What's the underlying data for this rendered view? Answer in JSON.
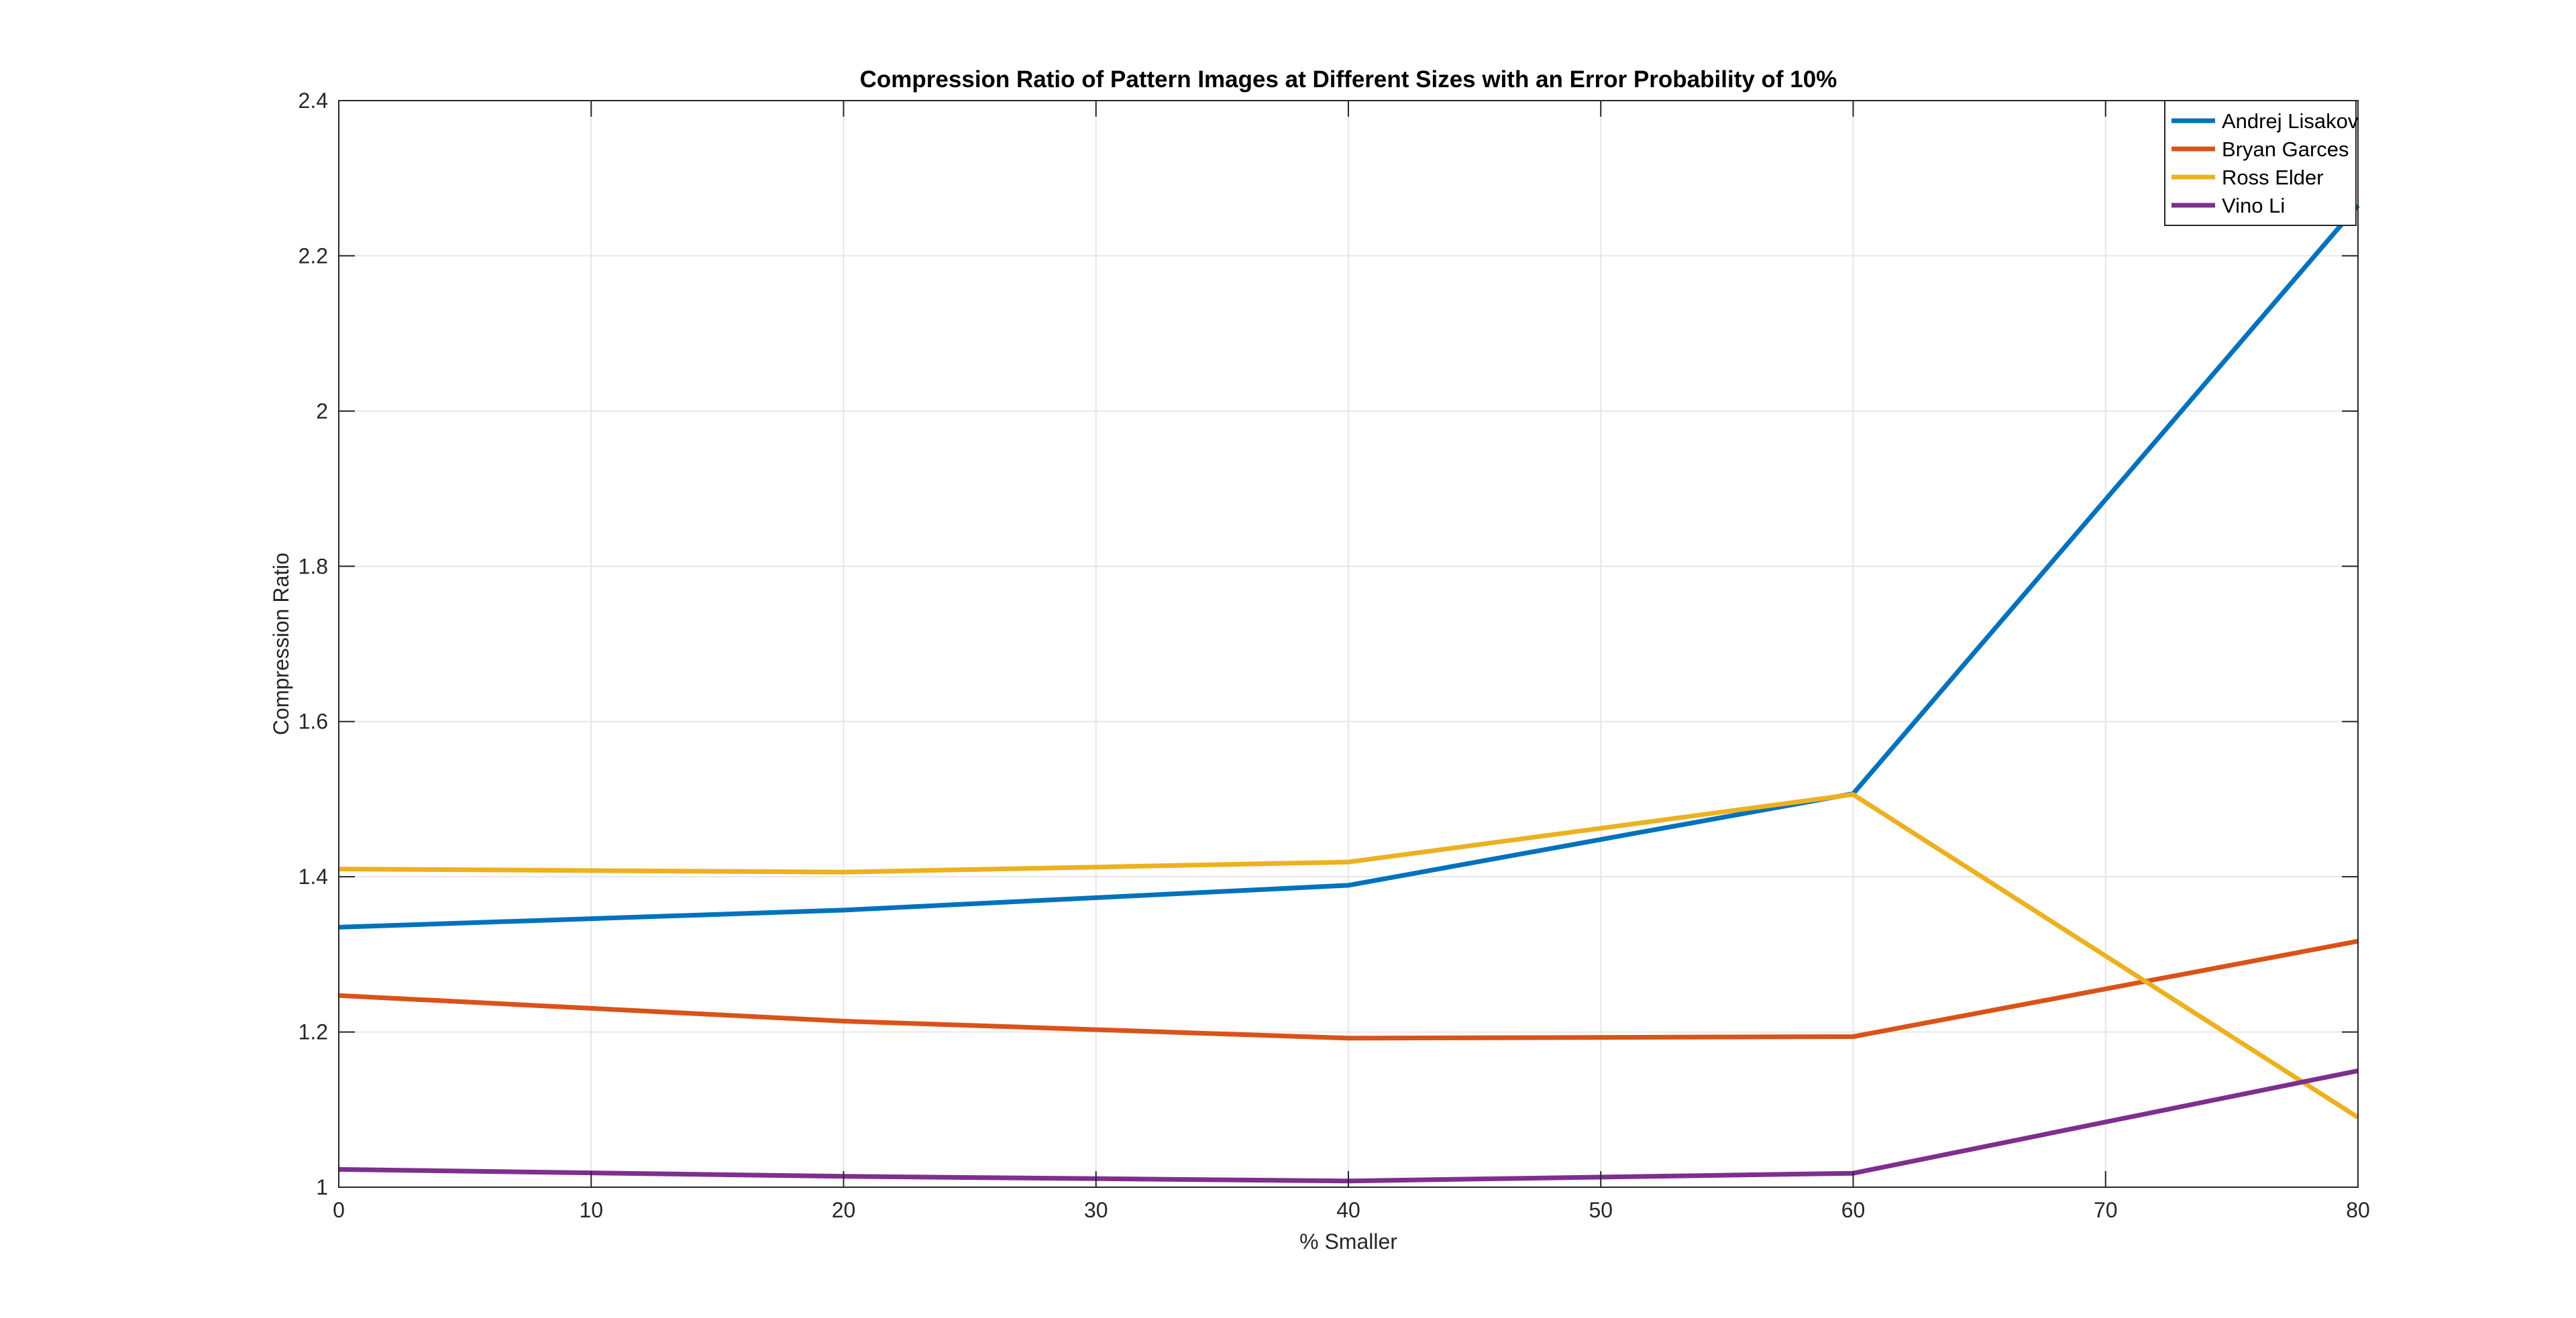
{
  "chart_data": {
    "type": "line",
    "title": "Compression Ratio of Pattern Images at Different Sizes with an Error Probability of 10%",
    "xlabel": "% Smaller",
    "ylabel": "Compression Ratio",
    "xlim": [
      0,
      80
    ],
    "ylim": [
      1,
      2.4
    ],
    "xticks": [
      0,
      10,
      20,
      30,
      40,
      50,
      60,
      70,
      80
    ],
    "xtick_labels": [
      "0",
      "10",
      "20",
      "30",
      "40",
      "50",
      "60",
      "70",
      "80"
    ],
    "yticks": [
      1,
      1.2,
      1.4,
      1.6,
      1.8,
      2,
      2.2,
      2.4
    ],
    "ytick_labels": [
      "1",
      "1.2",
      "1.4",
      "1.6",
      "1.8",
      "2",
      "2.2",
      "2.4"
    ],
    "grid": true,
    "legend_position": "top-right",
    "x": [
      0,
      20,
      40,
      60,
      80
    ],
    "series": [
      {
        "name": "Andrej Lisakov",
        "color": "#0072BD",
        "values": [
          1.335,
          1.357,
          1.389,
          1.507,
          2.265
        ]
      },
      {
        "name": "Bryan Garces",
        "color": "#D95319",
        "values": [
          1.247,
          1.214,
          1.192,
          1.194,
          1.317
        ]
      },
      {
        "name": "Ross Elder",
        "color": "#EDB120",
        "values": [
          1.41,
          1.406,
          1.419,
          1.506,
          1.09
        ]
      },
      {
        "name": "Vino Li",
        "color": "#7E2F8E",
        "values": [
          1.023,
          1.014,
          1.008,
          1.018,
          1.15
        ]
      }
    ]
  }
}
